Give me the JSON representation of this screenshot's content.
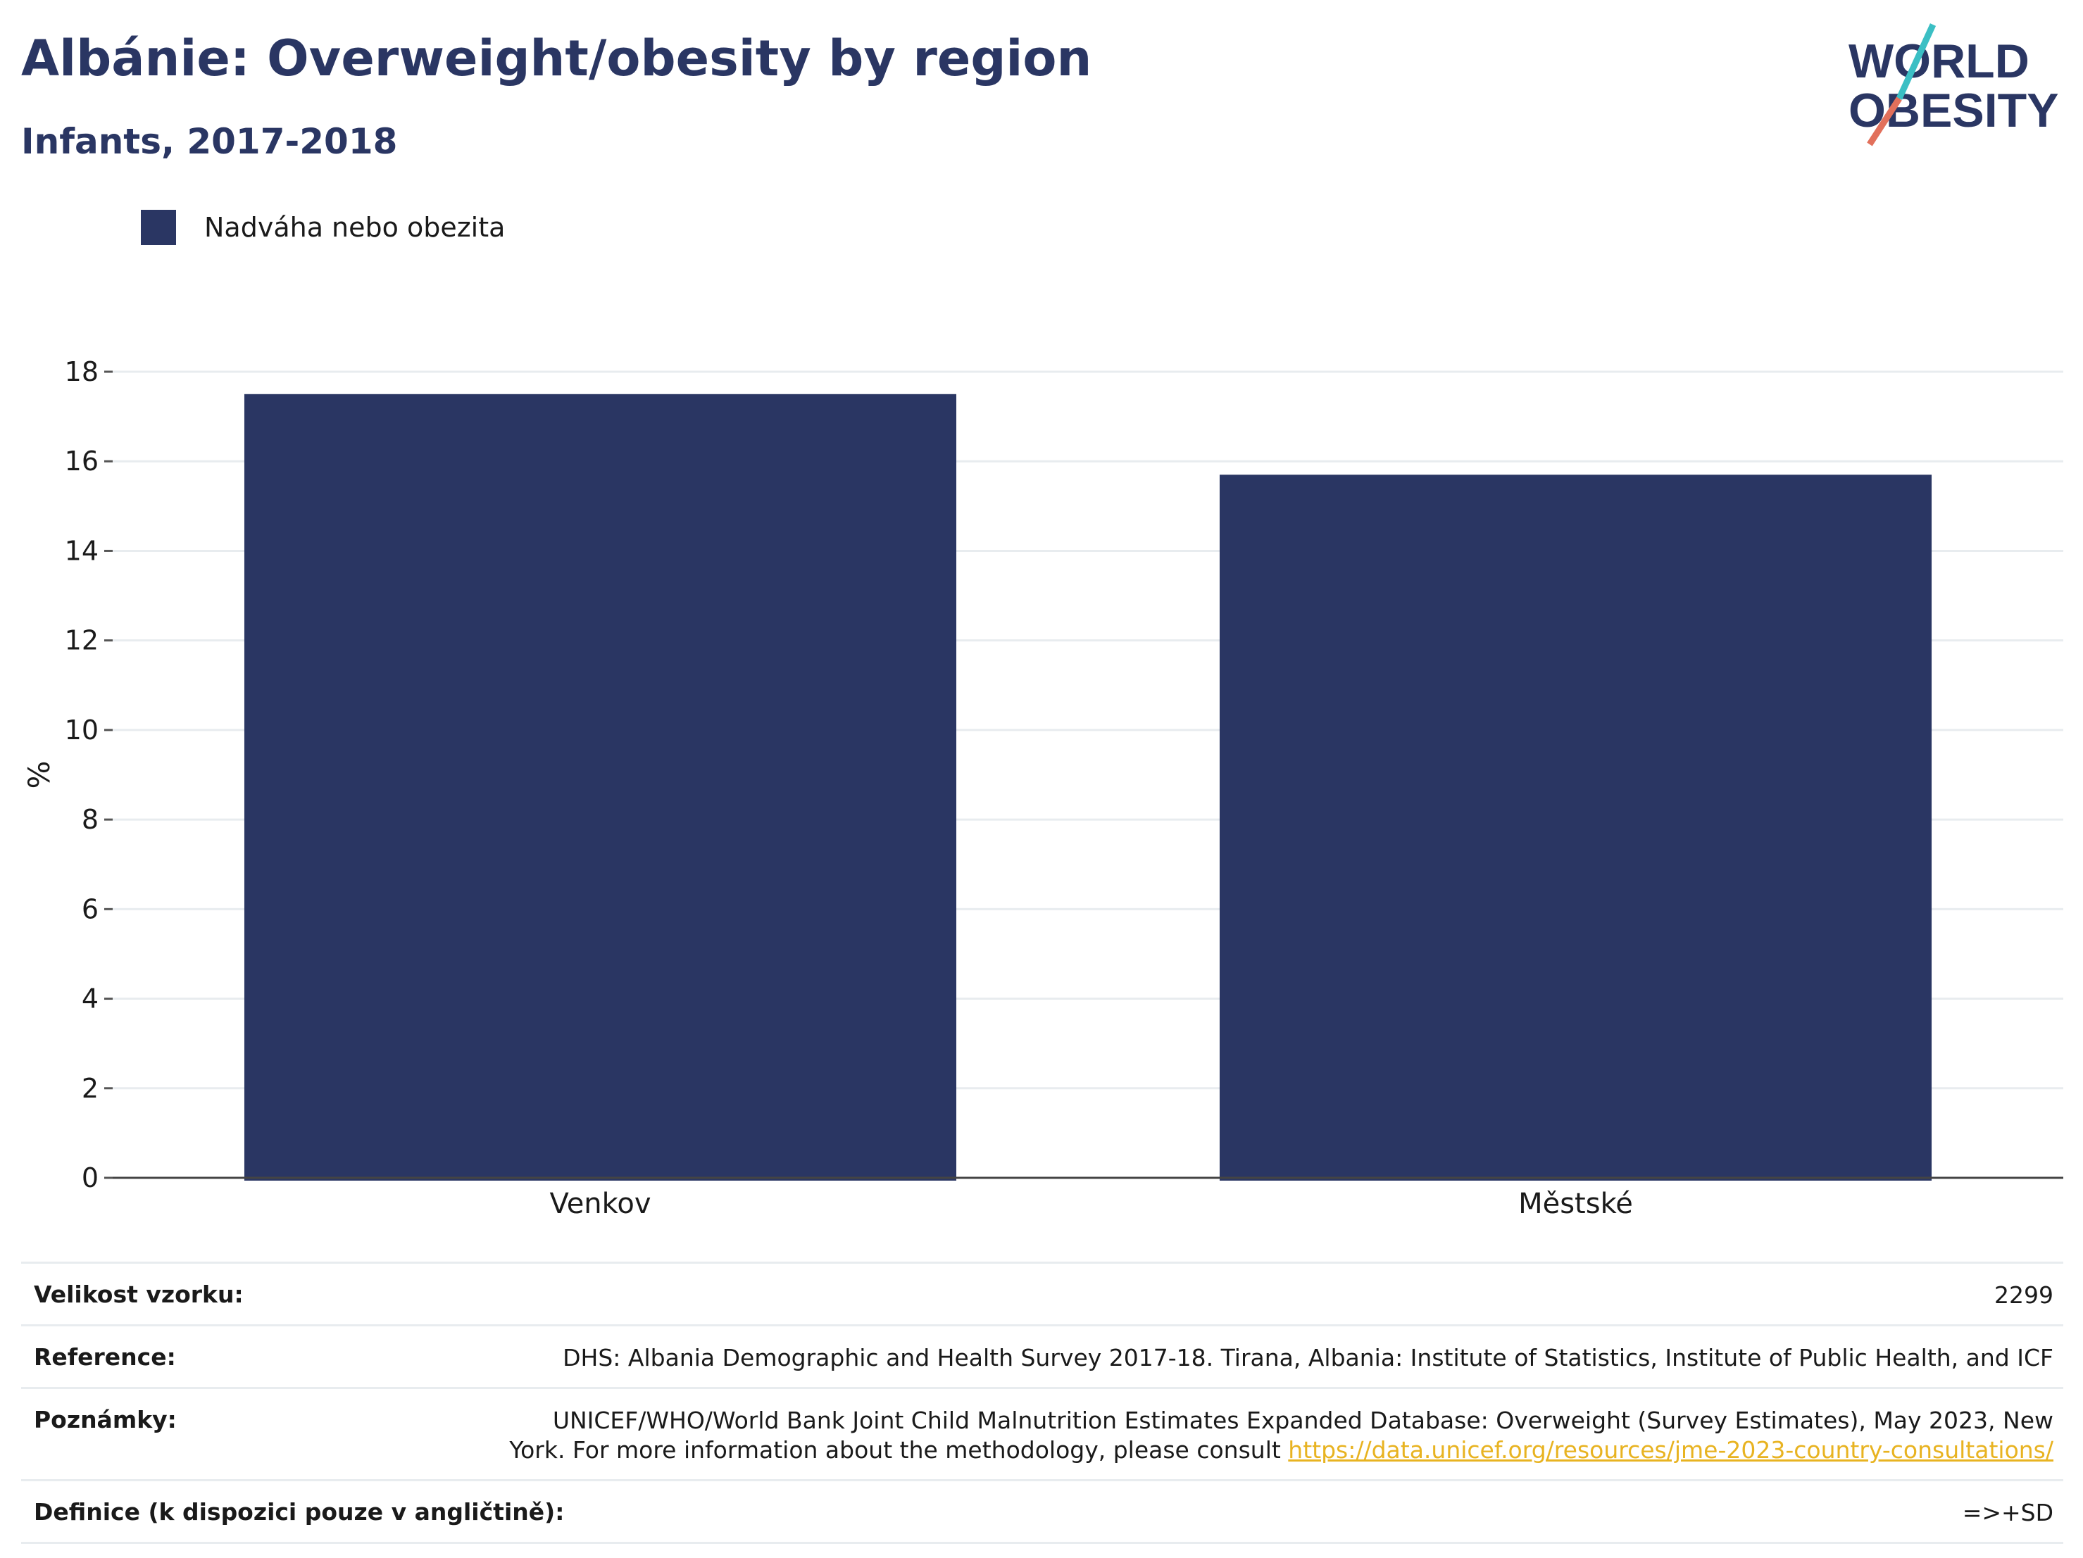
{
  "header": {
    "title": "Albánie: Overweight/obesity by region",
    "subtitle": "Infants, 2017-2018"
  },
  "logo": {
    "line1": "WORLD",
    "line2": "OBESITY"
  },
  "legend": {
    "label": "Nadváha nebo obezita",
    "color": "#2a3663"
  },
  "chart_data": {
    "type": "bar",
    "categories": [
      "Venkov",
      "Městské"
    ],
    "series": [
      {
        "name": "Nadváha nebo obezita",
        "values": [
          17.5,
          15.7
        ]
      }
    ],
    "ylabel": "%",
    "ylim": [
      0,
      18
    ],
    "yticks": [
      0,
      2,
      4,
      6,
      8,
      10,
      12,
      14,
      16,
      18
    ],
    "grid": true,
    "legend_position": "top-left",
    "bar_color": "#2a3663"
  },
  "meta": {
    "sample_size": {
      "label": "Velikost vzorku:",
      "value": "2299"
    },
    "reference": {
      "label": "Reference:",
      "value": "DHS: Albania Demographic and Health Survey 2017-18. Tirana, Albania: Institute of Statistics, Institute of Public Health, and ICF"
    },
    "notes": {
      "label": "Poznámky:",
      "text": "UNICEF/WHO/World Bank Joint Child Malnutrition Estimates Expanded Database: Overweight (Survey Estimates), May 2023, New York. For more information about the methodology, please consult ",
      "link": "https://data.unicef.org/resources/jme-2023-country-consultations/"
    },
    "definition": {
      "label": "Definice (k dispozici pouze v angličtině):",
      "value": "=>+SD"
    }
  }
}
